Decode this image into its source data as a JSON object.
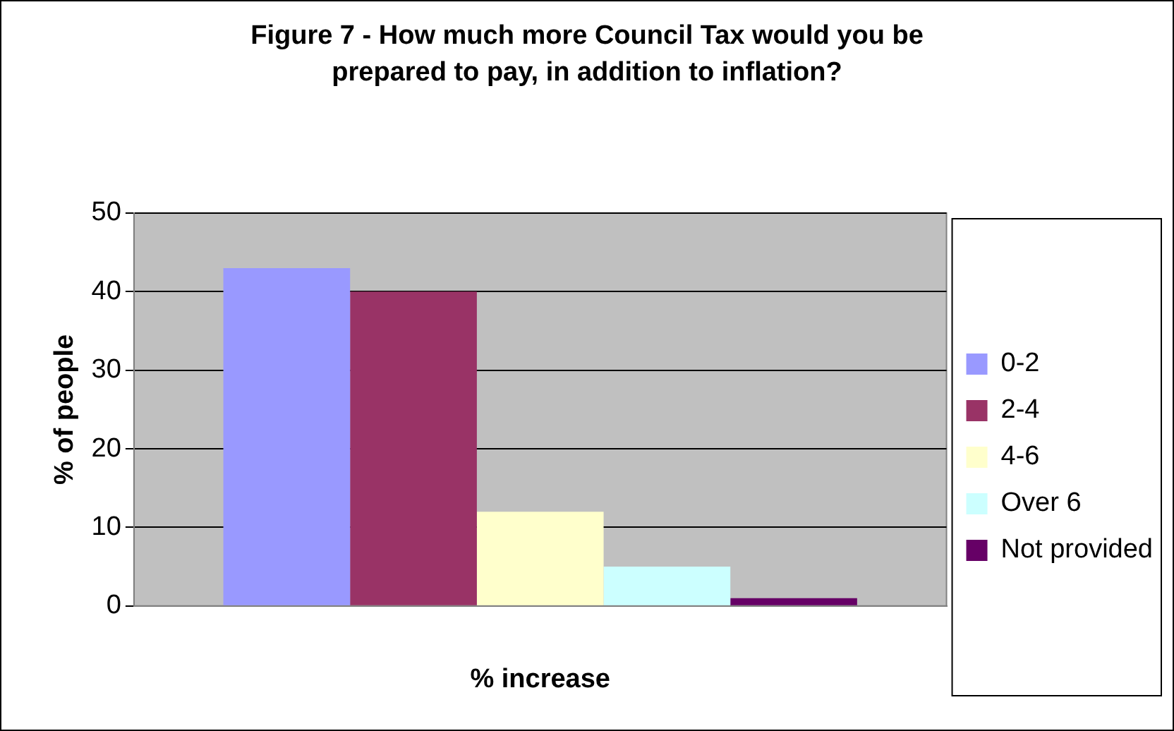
{
  "chart_data": {
    "type": "bar",
    "title": "Figure 7 - How much more Council Tax would you be prepared to pay, in addition to inflation?",
    "xlabel": "% increase",
    "ylabel": "% of people",
    "categories": [
      null
    ],
    "series": [
      {
        "name": "0-2",
        "color": "#9999ff",
        "values": [
          43
        ]
      },
      {
        "name": "2-4",
        "color": "#993366",
        "values": [
          40
        ]
      },
      {
        "name": "4-6",
        "color": "#ffffcc",
        "values": [
          12
        ]
      },
      {
        "name": "Over 6",
        "color": "#ccffff",
        "values": [
          5
        ]
      },
      {
        "name": "Not provided",
        "color": "#660066",
        "values": [
          1
        ]
      }
    ],
    "ylim": [
      0,
      50
    ],
    "yticks": [
      0,
      10,
      20,
      30,
      40,
      50
    ],
    "grid": "y",
    "legend": "right"
  }
}
